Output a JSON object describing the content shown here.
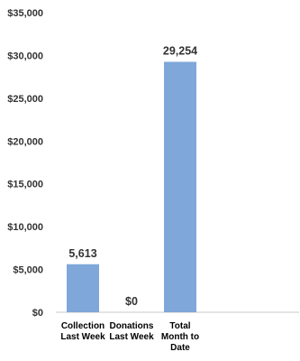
{
  "chart_data": {
    "type": "bar",
    "categories": [
      [
        "Collection",
        "Last Week"
      ],
      [
        "Donations",
        "Last Week"
      ],
      [
        "Total",
        "Month to",
        "Date"
      ]
    ],
    "values": [
      5613,
      0,
      29254
    ],
    "data_labels": [
      "5,613",
      "$0",
      "29,254"
    ],
    "y_ticks": [
      0,
      5000,
      10000,
      15000,
      20000,
      25000,
      30000,
      35000
    ],
    "y_tick_labels": [
      "$0",
      "$5,000",
      "$10,000",
      "$15,000",
      "$20,000",
      "$25,000",
      "$30,000",
      "$35,000"
    ],
    "ylim": [
      0,
      35000
    ],
    "title": "",
    "xlabel": "",
    "ylabel": "",
    "grid": false,
    "legend": "none",
    "colors": {
      "bar": "#7fa7d9",
      "axis": "#c8c8c8"
    }
  }
}
